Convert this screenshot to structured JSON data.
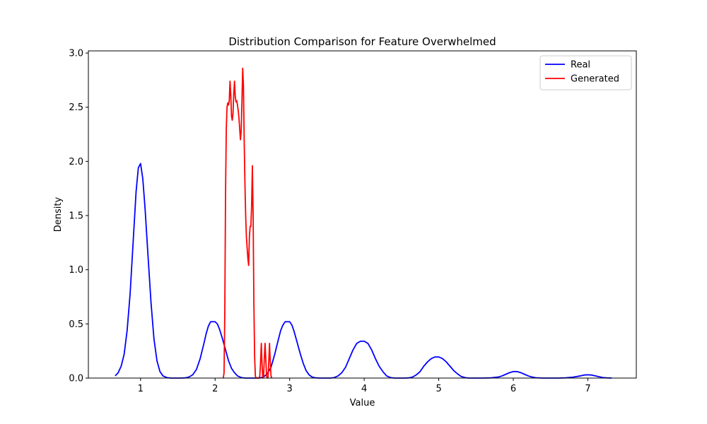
{
  "chart_data": {
    "type": "line",
    "title": "Distribution Comparison for Feature Overwhelmed",
    "xlabel": "Value",
    "ylabel": "Density",
    "xlim": [
      0.3,
      7.65
    ],
    "ylim": [
      0,
      3.02
    ],
    "xticks": [
      1,
      2,
      3,
      4,
      5,
      6,
      7
    ],
    "yticks": [
      0.0,
      0.5,
      1.0,
      1.5,
      2.0,
      2.5,
      3.0
    ],
    "ytick_labels": [
      "0.0",
      "0.5",
      "1.0",
      "1.5",
      "2.0",
      "2.5",
      "3.0"
    ],
    "grid": false,
    "legend_position": "top-right",
    "series": [
      {
        "name": "Real",
        "color": "#0000ff",
        "x": [
          0.66,
          0.7,
          0.74,
          0.78,
          0.82,
          0.86,
          0.9,
          0.94,
          0.97,
          1.0,
          1.03,
          1.06,
          1.1,
          1.14,
          1.18,
          1.22,
          1.26,
          1.3,
          1.35,
          1.4,
          1.45,
          1.5,
          1.55,
          1.6,
          1.65,
          1.7,
          1.75,
          1.8,
          1.85,
          1.88,
          1.91,
          1.94,
          1.97,
          2.0,
          2.03,
          2.06,
          2.1,
          2.14,
          2.18,
          2.22,
          2.26,
          2.3,
          2.35,
          2.4,
          2.45,
          2.5,
          2.55,
          2.6,
          2.65,
          2.7,
          2.75,
          2.8,
          2.85,
          2.88,
          2.91,
          2.94,
          2.97,
          3.0,
          3.03,
          3.06,
          3.1,
          3.14,
          3.18,
          3.22,
          3.26,
          3.3,
          3.35,
          3.4,
          3.45,
          3.5,
          3.55,
          3.6,
          3.65,
          3.7,
          3.75,
          3.8,
          3.85,
          3.9,
          3.95,
          4.0,
          4.05,
          4.1,
          4.15,
          4.2,
          4.25,
          4.3,
          4.35,
          4.4,
          4.45,
          4.5,
          4.55,
          4.6,
          4.65,
          4.7,
          4.75,
          4.8,
          4.85,
          4.9,
          4.95,
          5.0,
          5.05,
          5.1,
          5.15,
          5.2,
          5.25,
          5.3,
          5.35,
          5.4,
          5.5,
          5.6,
          5.7,
          5.8,
          5.85,
          5.9,
          5.95,
          6.0,
          6.05,
          6.1,
          6.15,
          6.2,
          6.25,
          6.3,
          6.4,
          6.5,
          6.6,
          6.7,
          6.8,
          6.9,
          6.95,
          7.0,
          7.05,
          7.1,
          7.15,
          7.2,
          7.25,
          7.32
        ],
        "y": [
          0.02,
          0.05,
          0.11,
          0.22,
          0.44,
          0.78,
          1.25,
          1.72,
          1.94,
          1.98,
          1.84,
          1.57,
          1.13,
          0.7,
          0.36,
          0.16,
          0.06,
          0.02,
          0.005,
          0.0,
          0.0,
          0.0,
          0.0,
          0.002,
          0.01,
          0.03,
          0.08,
          0.18,
          0.32,
          0.41,
          0.48,
          0.52,
          0.52,
          0.52,
          0.5,
          0.45,
          0.36,
          0.26,
          0.16,
          0.09,
          0.05,
          0.02,
          0.005,
          0.0,
          0.0,
          0.0,
          0.0,
          0.002,
          0.01,
          0.04,
          0.1,
          0.22,
          0.36,
          0.44,
          0.49,
          0.52,
          0.52,
          0.52,
          0.49,
          0.43,
          0.33,
          0.23,
          0.14,
          0.07,
          0.03,
          0.01,
          0.002,
          0.0,
          0.0,
          0.0,
          0.0,
          0.005,
          0.02,
          0.05,
          0.1,
          0.18,
          0.26,
          0.32,
          0.34,
          0.34,
          0.32,
          0.26,
          0.18,
          0.11,
          0.06,
          0.02,
          0.005,
          0.0,
          0.0,
          0.0,
          0.0,
          0.002,
          0.01,
          0.03,
          0.06,
          0.11,
          0.15,
          0.18,
          0.195,
          0.195,
          0.18,
          0.15,
          0.11,
          0.07,
          0.04,
          0.015,
          0.005,
          0.0,
          0.0,
          0.0,
          0.002,
          0.01,
          0.02,
          0.035,
          0.05,
          0.06,
          0.06,
          0.05,
          0.035,
          0.02,
          0.01,
          0.003,
          0.0,
          0.0,
          0.0,
          0.002,
          0.008,
          0.02,
          0.028,
          0.03,
          0.028,
          0.02,
          0.012,
          0.005,
          0.002,
          0.0
        ]
      },
      {
        "name": "Generated",
        "color": "#ff0000",
        "x": [
          2.11,
          2.12,
          2.13,
          2.14,
          2.15,
          2.16,
          2.17,
          2.18,
          2.19,
          2.2,
          2.21,
          2.22,
          2.23,
          2.24,
          2.25,
          2.26,
          2.27,
          2.28,
          2.29,
          2.3,
          2.31,
          2.32,
          2.33,
          2.34,
          2.35,
          2.36,
          2.37,
          2.38,
          2.39,
          2.4,
          2.41,
          2.42,
          2.43,
          2.44,
          2.45,
          2.46,
          2.47,
          2.48,
          2.49,
          2.5,
          2.51,
          2.52,
          2.53,
          2.54,
          2.55,
          2.56,
          2.565,
          2.57,
          2.58,
          2.59,
          2.6,
          2.61,
          2.62,
          2.63,
          2.64,
          2.65,
          2.66,
          2.67,
          2.68,
          2.69,
          2.7,
          2.71,
          2.72,
          2.73,
          2.74,
          2.75,
          2.76
        ],
        "y": [
          0.0,
          0.05,
          0.6,
          1.7,
          2.3,
          2.5,
          2.54,
          2.52,
          2.56,
          2.74,
          2.62,
          2.42,
          2.38,
          2.44,
          2.62,
          2.74,
          2.6,
          2.55,
          2.56,
          2.52,
          2.47,
          2.4,
          2.3,
          2.2,
          2.28,
          2.55,
          2.86,
          2.7,
          2.2,
          1.8,
          1.5,
          1.3,
          1.2,
          1.1,
          1.04,
          1.3,
          1.4,
          1.4,
          1.6,
          1.96,
          1.5,
          0.7,
          0.2,
          0.02,
          0.0,
          0.0,
          0.0,
          0.0,
          0.0,
          0.0,
          0.02,
          0.15,
          0.32,
          0.12,
          0.0,
          0.01,
          0.18,
          0.32,
          0.18,
          0.02,
          0.0,
          0.01,
          0.15,
          0.32,
          0.15,
          0.02,
          0.0
        ]
      }
    ]
  }
}
